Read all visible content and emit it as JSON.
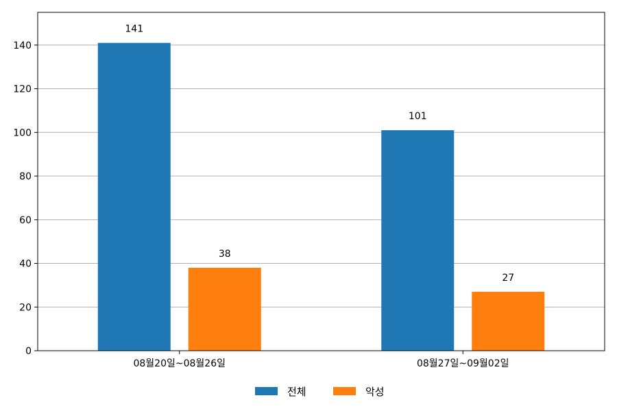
{
  "chart_data": {
    "type": "bar",
    "categories": [
      "08월20일~08월26일",
      "08월27일~09월02일"
    ],
    "series": [
      {
        "name": "전체",
        "values": [
          141,
          101
        ],
        "color": "#1f77b4"
      },
      {
        "name": "악성",
        "values": [
          38,
          27
        ],
        "color": "#ff7f0e"
      }
    ],
    "ylim": [
      0,
      155
    ],
    "yticks": [
      0,
      20,
      40,
      60,
      80,
      100,
      120,
      140
    ],
    "grid": "y",
    "legend_position": "bottom-center",
    "data_labels": true
  }
}
